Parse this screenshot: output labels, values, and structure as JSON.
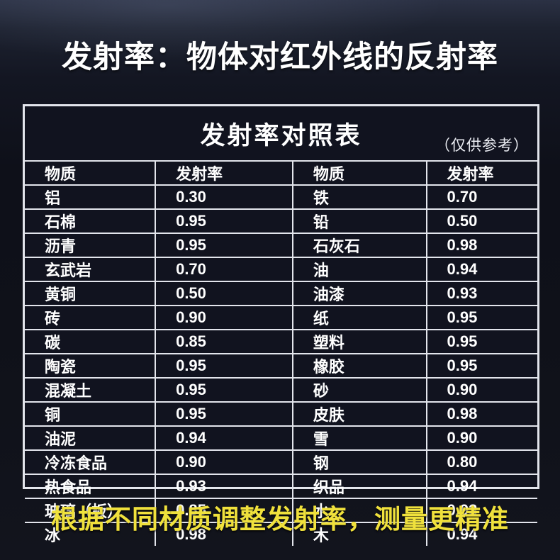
{
  "page": {
    "title": "发射率：物体对红外线的反射率",
    "slogan": "根据不同材质调整发射率，测量更精准",
    "colors": {
      "background": "#0e1018",
      "table_background": "#11131f",
      "table_border": "#e3e5ec",
      "text": "#ffffff",
      "slogan_accent": "#f0e13c"
    }
  },
  "chart_data": {
    "type": "table",
    "title": "发射率对照表",
    "note": "（仅供参考）",
    "columns": [
      "物质",
      "发射率",
      "物质",
      "发射率"
    ],
    "rows": [
      [
        "铝",
        "0.30",
        "铁",
        "0.70"
      ],
      [
        "石棉",
        "0.95",
        "铅",
        "0.50"
      ],
      [
        "沥青",
        "0.95",
        "石灰石",
        "0.98"
      ],
      [
        "玄武岩",
        "0.70",
        "油",
        "0.94"
      ],
      [
        "黄铜",
        "0.50",
        "油漆",
        "0.93"
      ],
      [
        "砖",
        "0.90",
        "纸",
        "0.95"
      ],
      [
        "碳",
        "0.85",
        "塑料",
        "0.95"
      ],
      [
        "陶瓷",
        "0.95",
        "橡胶",
        "0.95"
      ],
      [
        "混凝土",
        "0.95",
        "砂",
        "0.90"
      ],
      [
        "铜",
        "0.95",
        "皮肤",
        "0.98"
      ],
      [
        "油泥",
        "0.94",
        "雪",
        "0.90"
      ],
      [
        "冷冻食品",
        "0.90",
        "钢",
        "0.80"
      ],
      [
        "热食品",
        "0.93",
        "织品",
        "0.94"
      ],
      [
        "玻璃（板）",
        "0.85",
        "水",
        "0.93"
      ],
      [
        "冰",
        "0.98",
        "木",
        "0.94"
      ]
    ]
  }
}
